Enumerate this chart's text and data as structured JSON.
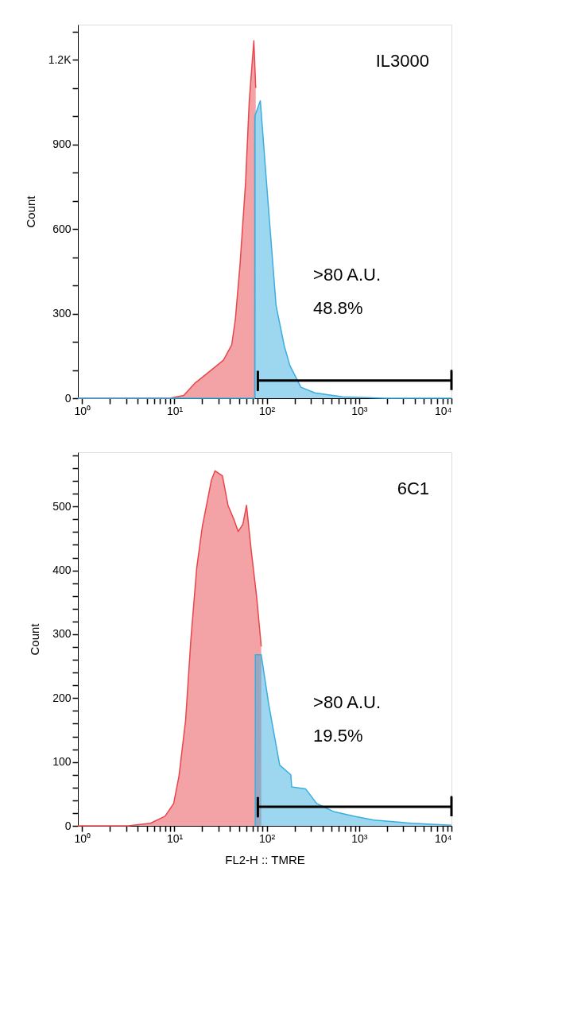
{
  "chart_data": [
    {
      "type": "area",
      "ylabel": "Count",
      "log": "x",
      "grid": false,
      "annotations": [
        "IL3000",
        ">80 A.U.",
        "48.8%"
      ],
      "xlim": [
        0.9,
        10000
      ],
      "xticks": [
        {
          "value": 1,
          "label": "10⁰"
        },
        {
          "value": 2,
          "label": null
        },
        {
          "value": 3,
          "label": null
        },
        {
          "value": 4,
          "label": null
        },
        {
          "value": 5,
          "label": null
        },
        {
          "value": 6,
          "label": null
        },
        {
          "value": 7,
          "label": null
        },
        {
          "value": 8,
          "label": null
        },
        {
          "value": 9,
          "label": null
        },
        {
          "value": 10,
          "label": "10¹"
        },
        {
          "value": 20,
          "label": null
        },
        {
          "value": 30,
          "label": null
        },
        {
          "value": 40,
          "label": null
        },
        {
          "value": 50,
          "label": null
        },
        {
          "value": 60,
          "label": null
        },
        {
          "value": 70,
          "label": null
        },
        {
          "value": 80,
          "label": null
        },
        {
          "value": 90,
          "label": null
        },
        {
          "value": 100,
          "label": "10²"
        },
        {
          "value": 200,
          "label": null
        },
        {
          "value": 300,
          "label": null
        },
        {
          "value": 400,
          "label": null
        },
        {
          "value": 500,
          "label": null
        },
        {
          "value": 600,
          "label": null
        },
        {
          "value": 700,
          "label": null
        },
        {
          "value": 800,
          "label": null
        },
        {
          "value": 900,
          "label": null
        },
        {
          "value": 1000,
          "label": "10³"
        },
        {
          "value": 2000,
          "label": null
        },
        {
          "value": 3000,
          "label": null
        },
        {
          "value": 4000,
          "label": null
        },
        {
          "value": 5000,
          "label": null
        },
        {
          "value": 6000,
          "label": null
        },
        {
          "value": 7000,
          "label": null
        },
        {
          "value": 8000,
          "label": null
        },
        {
          "value": 9000,
          "label": null
        },
        {
          "value": 10000,
          "label": "10⁴"
        }
      ],
      "ylim": [
        0,
        1325
      ],
      "yticks": [
        0,
        {
          "value": 100,
          "label": null
        },
        {
          "value": 200,
          "label": null
        },
        300,
        {
          "value": 400,
          "label": null
        },
        {
          "value": 500,
          "label": null
        },
        600,
        {
          "value": 700,
          "label": null
        },
        {
          "value": 800,
          "label": null
        },
        900,
        {
          "value": 1000,
          "label": null
        },
        {
          "value": 1100,
          "label": null
        },
        {
          "value": 1200,
          "label": "1.2K"
        },
        {
          "value": 1300,
          "label": null
        }
      ],
      "series": [
        {
          "color": "#e8464b",
          "x": [
            0.9,
            8.9,
            12.6,
            16.6,
            23.4,
            33.9,
            41.7,
            45.7,
            51.3,
            58.9,
            64.6,
            72.4,
            75.9
          ],
          "values": [
            0,
            0,
            10,
            53,
            92,
            135,
            189,
            281,
            474,
            765,
            1055,
            1268,
            1100
          ]
        },
        {
          "color": "#3aaee0",
          "x": [
            0.9,
            73.9,
            74.1,
            85.1,
            102,
            126,
            155,
            178,
            234,
            331,
            661,
            1905,
            10000
          ],
          "values": [
            0,
            0,
            1000,
            1055,
            716,
            329,
            184,
            116,
            39,
            19,
            5,
            0,
            0
          ]
        },
        {
          "type": "line",
          "color": "#000000",
          "x": [
            80,
            80,
            80,
            10000,
            10000,
            10000
          ],
          "values": [
            97,
            29,
            63,
            63,
            97,
            29
          ]
        }
      ]
    },
    {
      "type": "area",
      "ylabel": "Count",
      "xlabel": "FL2-H :: TMRE",
      "log": "x",
      "grid": false,
      "annotations": [
        "6C1",
        ">80 A.U.",
        "19.5%"
      ],
      "xlim": [
        0.9,
        10000
      ],
      "xticks": [
        {
          "value": 1,
          "label": "10⁰"
        },
        {
          "value": 2,
          "label": null
        },
        {
          "value": 3,
          "label": null
        },
        {
          "value": 4,
          "label": null
        },
        {
          "value": 5,
          "label": null
        },
        {
          "value": 6,
          "label": null
        },
        {
          "value": 7,
          "label": null
        },
        {
          "value": 8,
          "label": null
        },
        {
          "value": 9,
          "label": null
        },
        {
          "value": 10,
          "label": "10¹"
        },
        {
          "value": 20,
          "label": null
        },
        {
          "value": 30,
          "label": null
        },
        {
          "value": 40,
          "label": null
        },
        {
          "value": 50,
          "label": null
        },
        {
          "value": 60,
          "label": null
        },
        {
          "value": 70,
          "label": null
        },
        {
          "value": 80,
          "label": null
        },
        {
          "value": 90,
          "label": null
        },
        {
          "value": 100,
          "label": "10²"
        },
        {
          "value": 200,
          "label": null
        },
        {
          "value": 300,
          "label": null
        },
        {
          "value": 400,
          "label": null
        },
        {
          "value": 500,
          "label": null
        },
        {
          "value": 600,
          "label": null
        },
        {
          "value": 700,
          "label": null
        },
        {
          "value": 800,
          "label": null
        },
        {
          "value": 900,
          "label": null
        },
        {
          "value": 1000,
          "label": "10³"
        },
        {
          "value": 2000,
          "label": null
        },
        {
          "value": 3000,
          "label": null
        },
        {
          "value": 4000,
          "label": null
        },
        {
          "value": 5000,
          "label": null
        },
        {
          "value": 6000,
          "label": null
        },
        {
          "value": 7000,
          "label": null
        },
        {
          "value": 8000,
          "label": null
        },
        {
          "value": 9000,
          "label": null
        },
        {
          "value": 10000,
          "label": "10⁴"
        }
      ],
      "ylim": [
        0,
        585
      ],
      "yticks": [
        0,
        {
          "value": 20,
          "label": null
        },
        {
          "value": 40,
          "label": null
        },
        {
          "value": 60,
          "label": null
        },
        {
          "value": 80,
          "label": null
        },
        100,
        {
          "value": 120,
          "label": null
        },
        {
          "value": 140,
          "label": null
        },
        {
          "value": 160,
          "label": null
        },
        {
          "value": 180,
          "label": null
        },
        200,
        {
          "value": 220,
          "label": null
        },
        {
          "value": 240,
          "label": null
        },
        {
          "value": 260,
          "label": null
        },
        {
          "value": 280,
          "label": null
        },
        300,
        {
          "value": 320,
          "label": null
        },
        {
          "value": 340,
          "label": null
        },
        {
          "value": 360,
          "label": null
        },
        {
          "value": 380,
          "label": null
        },
        400,
        {
          "value": 420,
          "label": null
        },
        {
          "value": 440,
          "label": null
        },
        {
          "value": 460,
          "label": null
        },
        {
          "value": 480,
          "label": null
        },
        500,
        {
          "value": 520,
          "label": null
        },
        {
          "value": 540,
          "label": null
        },
        {
          "value": 560,
          "label": null
        },
        {
          "value": 580,
          "label": null
        }
      ],
      "series": [
        {
          "color": "#e8464b",
          "x": [
            0.9,
            3.16,
            5.5,
            7.9,
            9.8,
            11.2,
            13.2,
            15.1,
            17.4,
            20,
            25.1,
            27.5,
            33.1,
            38,
            43.7,
            49,
            55,
            60.3,
            67.6,
            77.6,
            87.1
          ],
          "values": [
            0,
            0,
            4,
            15,
            35,
            78,
            165,
            294,
            403,
            468,
            541,
            556,
            548,
            502,
            481,
            461,
            472,
            502,
            433,
            359,
            281
          ]
        },
        {
          "color": "#3aaee0",
          "x": [
            75,
            75.2,
            87,
            105,
            138,
            182,
            186,
            263,
            347,
            537,
            891,
            1445,
            3715,
            10000
          ],
          "values": [
            0,
            268,
            268,
            190,
            95,
            80,
            61,
            58,
            35,
            22,
            15,
            9,
            4,
            1
          ]
        },
        {
          "type": "line",
          "color": "#000000",
          "x": [
            80,
            80,
            80,
            10000,
            10000,
            10000
          ],
          "values": [
            45,
            15,
            30,
            30,
            45,
            15
          ]
        }
      ]
    }
  ]
}
